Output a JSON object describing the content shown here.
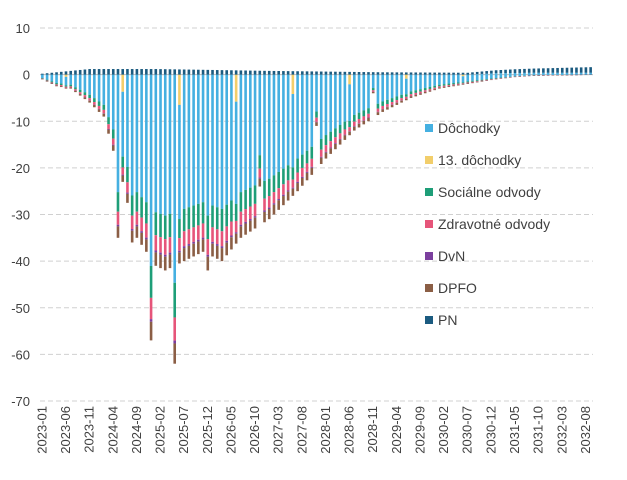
{
  "chart_data": {
    "type": "bar",
    "stacked": true,
    "title": "",
    "xlabel": "",
    "ylabel": "",
    "ylim": [
      -70,
      10
    ],
    "yticks": [
      10,
      0,
      -10,
      -20,
      -30,
      -40,
      -50,
      -60,
      -70
    ],
    "grid": true,
    "legend_position": "right-middle",
    "x_tick_labels": [
      "2023-01",
      "2023-06",
      "2023-11",
      "2024-04",
      "2024-09",
      "2025-02",
      "2025-07",
      "2025-12",
      "2026-05",
      "2026-10",
      "2027-03",
      "2027-08",
      "2028-01",
      "2028-06",
      "2028-11",
      "2029-04",
      "2029-09",
      "2030-02",
      "2030-07",
      "2030-12",
      "2031-05",
      "2031-10",
      "2032-03",
      "2032-08"
    ],
    "series": [
      {
        "name": "Dôchodky",
        "color": "#45b0e1"
      },
      {
        "name": "13. dôchodky",
        "color": "#f2ce6b"
      },
      {
        "name": "Sociálne odvody",
        "color": "#1e9e78"
      },
      {
        "name": "Zdravotné odvody",
        "color": "#e6557a"
      },
      {
        "name": "DvN",
        "color": "#7b3f9e"
      },
      {
        "name": "DPFO",
        "color": "#8b5e45"
      },
      {
        "name": "PN",
        "color": "#1b5b80"
      }
    ],
    "start_month": "2023-01",
    "months": 117,
    "totals_profile": [
      [
        0,
        -1
      ],
      [
        3,
        -2.5
      ],
      [
        6,
        -3
      ],
      [
        10,
        -6
      ],
      [
        13,
        -9
      ],
      [
        16,
        -20
      ],
      [
        20,
        -35
      ],
      [
        24,
        -41
      ],
      [
        26,
        -42
      ],
      [
        30,
        -40
      ],
      [
        34,
        -38
      ],
      [
        38,
        -40
      ],
      [
        42,
        -35
      ],
      [
        48,
        -31
      ],
      [
        54,
        -25
      ],
      [
        60,
        -18
      ],
      [
        66,
        -12
      ],
      [
        72,
        -8
      ],
      [
        78,
        -5
      ],
      [
        84,
        -3
      ],
      [
        90,
        -2
      ],
      [
        96,
        -1
      ],
      [
        100,
        -0.5
      ],
      [
        104,
        -0.2
      ],
      [
        116,
        0
      ]
    ],
    "spikes": {
      "5": -3,
      "16": -35,
      "17": -23,
      "19": -36,
      "23": -57,
      "28": -62,
      "35": -42,
      "46": -24,
      "58": -11,
      "70": -4
    },
    "thirteenth_months": [
      5,
      17,
      29,
      41,
      53,
      65,
      77,
      89,
      101,
      113
    ],
    "component_shares": {
      "Dôchodky": 0.72,
      "Sociálne odvody": 0.12,
      "Zdravotné odvody": 0.08,
      "DvN": 0.01,
      "DPFO": 0.07
    },
    "pn_profile": [
      [
        0,
        0.2
      ],
      [
        10,
        1.2
      ],
      [
        24,
        1.2
      ],
      [
        48,
        0.8
      ],
      [
        72,
        0.5
      ],
      [
        90,
        0.4
      ],
      [
        100,
        0.8
      ],
      [
        116,
        1.2
      ]
    ],
    "positive_dochodky_profile": [
      [
        0,
        0
      ],
      [
        90,
        0
      ],
      [
        96,
        0.3
      ],
      [
        104,
        0.4
      ],
      [
        116,
        0.4
      ]
    ]
  }
}
